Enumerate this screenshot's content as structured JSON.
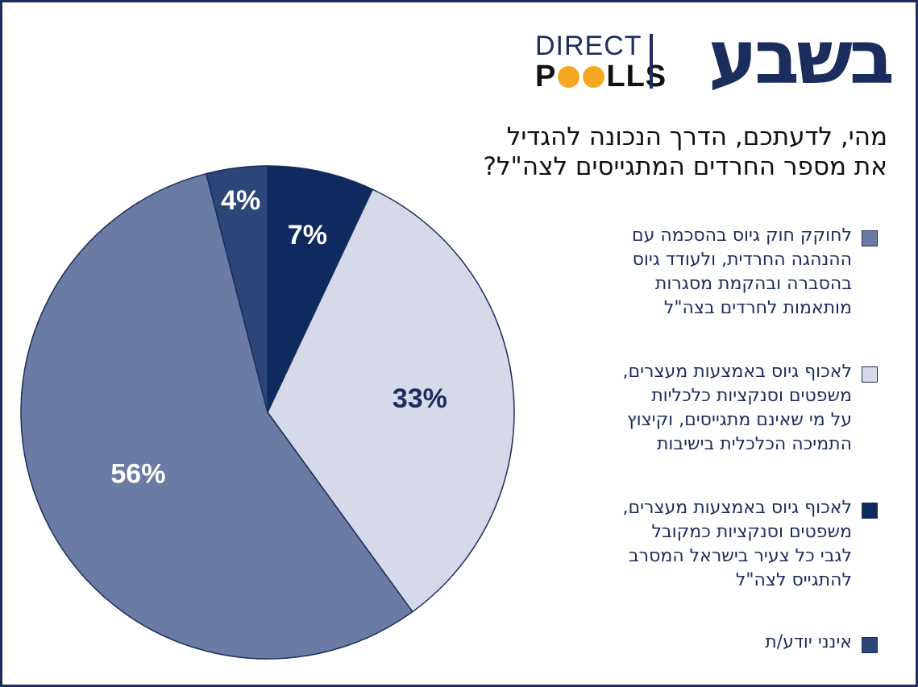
{
  "brand": {
    "direct": "DIRECT",
    "polls_p": "P",
    "polls_rest": "LLS",
    "publisher": "בשבע",
    "dot_colors": [
      "#f5a623",
      "#f5a623"
    ]
  },
  "chart_data": {
    "type": "pie",
    "title": "מהי, לדעתכם, הדרך הנכונה להגדיל את מספר החרדים המתגייסים לצה\"ל?",
    "title_lines": [
      "מהי, לדעתכם, הדרך הנכונה להגדיל",
      "את מספר החרדים המתגייסים לצה\"ל?"
    ],
    "slices": [
      {
        "label": "לאכוף גיוס באמצעות מעצרים, משפטים וסנקציות כמקובל לגבי כל צעיר בישראל המסרב להתגייס לצה\"ל",
        "value": 7,
        "display": "7%",
        "color": "#0e2a5e",
        "label_color": "#ffffff"
      },
      {
        "label": "לאכוף גיוס באמצעות מעצרים, משפטים וסנקציות כלכליות על מי שאינם מתגייסים, וקיצוץ התמיכה הכלכלית בישיבות",
        "value": 33,
        "display": "33%",
        "color": "#d5d9e8",
        "label_color": "#1b2d5c"
      },
      {
        "label": "לחוקק חוק גיוס בהסכמה עם ההנהגה החרדית, ולעודד גיוס בהסברה ובהקמת מסגרות מותאמות לחרדים בצה\"ל",
        "value": 56,
        "display": "56%",
        "color": "#6a7ba4",
        "label_color": "#ffffff"
      },
      {
        "label": "אינני יודע/ת",
        "value": 4,
        "display": "4%",
        "color": "#2c4679",
        "label_color": "#ffffff"
      }
    ],
    "legend": [
      {
        "lines": [
          "לחוקק חוק גיוס בהסכמה עם",
          "ההנהגה החרדית, ולעודד גיוס",
          "בהסברה ובהקמת מסגרות",
          "מותאמות לחרדים בצה\"ל"
        ],
        "color": "#6a7ba4"
      },
      {
        "lines": [
          "לאכוף גיוס באמצעות מעצרים,",
          "משפטים וסנקציות כלכליות",
          "על מי שאינם מתגייסים, וקיצוץ",
          "התמיכה הכלכלית בישיבות"
        ],
        "color": "#d5d9e8"
      },
      {
        "lines": [
          "לאכוף גיוס באמצעות מעצרים,",
          "משפטים וסנקציות כמקובל",
          "לגבי כל צעיר בישראל המסרב",
          "להתגייס לצה\"ל"
        ],
        "color": "#0e2a5e"
      },
      {
        "lines": [
          "אינני יודע/ת"
        ],
        "color": "#2c4679"
      }
    ]
  }
}
